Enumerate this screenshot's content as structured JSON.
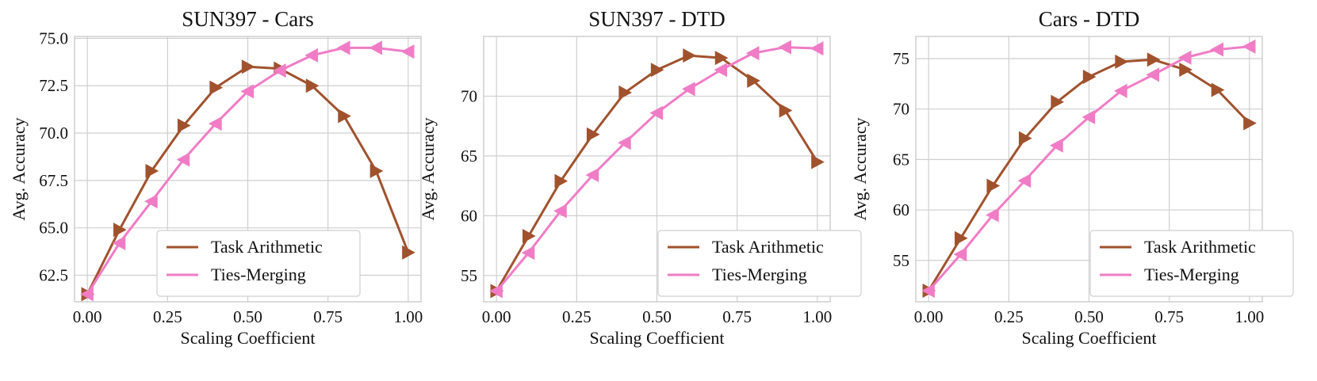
{
  "chart_data": [
    {
      "type": "line",
      "title": "SUN397 - Cars",
      "xlabel": "Scaling Coefficient",
      "ylabel": "Avg. Accuracy",
      "xlim": [
        -0.04,
        1.04
      ],
      "ylim": [
        61.1,
        75.1
      ],
      "xticks": [
        0.0,
        0.25,
        0.5,
        0.75,
        1.0
      ],
      "xtick_labels": [
        "0.00",
        "0.25",
        "0.50",
        "0.75",
        "1.00"
      ],
      "yticks": [
        62.5,
        65.0,
        67.5,
        70.0,
        72.5,
        75.0
      ],
      "ytick_labels": [
        "62.5",
        "65.0",
        "67.5",
        "70.0",
        "72.5",
        "75.0"
      ],
      "grid": true,
      "legend_position": "lower-center",
      "x": [
        0.0,
        0.1,
        0.2,
        0.3,
        0.4,
        0.5,
        0.6,
        0.7,
        0.8,
        0.9,
        1.0
      ],
      "series": [
        {
          "name": "Task Arithmetic",
          "color": "#a0522d",
          "marker": "triangle-right",
          "values": [
            61.5,
            64.9,
            68.0,
            70.4,
            72.4,
            73.5,
            73.4,
            72.5,
            70.9,
            68.0,
            63.7
          ]
        },
        {
          "name": "Ties-Merging",
          "color": "#f07cc6",
          "marker": "triangle-left",
          "values": [
            61.5,
            64.2,
            66.4,
            68.6,
            70.5,
            72.2,
            73.3,
            74.1,
            74.5,
            74.5,
            74.3
          ]
        }
      ]
    },
    {
      "type": "line",
      "title": "SUN397 - DTD",
      "xlabel": "Scaling Coefficient",
      "ylabel": "Avg. Accuracy",
      "xlim": [
        -0.04,
        1.04
      ],
      "ylim": [
        52.8,
        75.0
      ],
      "xticks": [
        0.0,
        0.25,
        0.5,
        0.75,
        1.0
      ],
      "xtick_labels": [
        "0.00",
        "0.25",
        "0.50",
        "0.75",
        "1.00"
      ],
      "yticks": [
        55,
        60,
        65,
        70
      ],
      "ytick_labels": [
        "55",
        "60",
        "65",
        "70"
      ],
      "grid": true,
      "legend_position": "lower-right",
      "x": [
        0.0,
        0.1,
        0.2,
        0.3,
        0.4,
        0.5,
        0.6,
        0.7,
        0.8,
        0.9,
        1.0
      ],
      "series": [
        {
          "name": "Task Arithmetic",
          "color": "#a0522d",
          "marker": "triangle-right",
          "values": [
            53.7,
            58.3,
            62.9,
            66.8,
            70.3,
            72.2,
            73.4,
            73.2,
            71.3,
            68.8,
            64.5
          ]
        },
        {
          "name": "Ties-Merging",
          "color": "#f07cc6",
          "marker": "triangle-left",
          "values": [
            53.7,
            56.9,
            60.4,
            63.4,
            66.1,
            68.6,
            70.6,
            72.2,
            73.6,
            74.1,
            74.0
          ]
        }
      ]
    },
    {
      "type": "line",
      "title": "Cars - DTD",
      "xlabel": "Scaling Coefficient",
      "ylabel": "Avg. Accuracy",
      "xlim": [
        -0.04,
        1.04
      ],
      "ylim": [
        50.9,
        77.2
      ],
      "xticks": [
        0.0,
        0.25,
        0.5,
        0.75,
        1.0
      ],
      "xtick_labels": [
        "0.00",
        "0.25",
        "0.50",
        "0.75",
        "1.00"
      ],
      "yticks": [
        55,
        60,
        65,
        70,
        75
      ],
      "ytick_labels": [
        "55",
        "60",
        "65",
        "70",
        "75"
      ],
      "grid": true,
      "legend_position": "lower-right",
      "x": [
        0.0,
        0.1,
        0.2,
        0.3,
        0.4,
        0.5,
        0.6,
        0.7,
        0.8,
        0.9,
        1.0
      ],
      "series": [
        {
          "name": "Task Arithmetic",
          "color": "#a0522d",
          "marker": "triangle-right",
          "values": [
            52.0,
            57.2,
            62.4,
            67.1,
            70.7,
            73.2,
            74.7,
            74.9,
            73.9,
            71.9,
            68.6
          ]
        },
        {
          "name": "Ties-Merging",
          "color": "#f07cc6",
          "marker": "triangle-left",
          "values": [
            52.0,
            55.6,
            59.5,
            62.9,
            66.4,
            69.2,
            71.8,
            73.4,
            75.1,
            75.9,
            76.2
          ]
        }
      ]
    }
  ]
}
